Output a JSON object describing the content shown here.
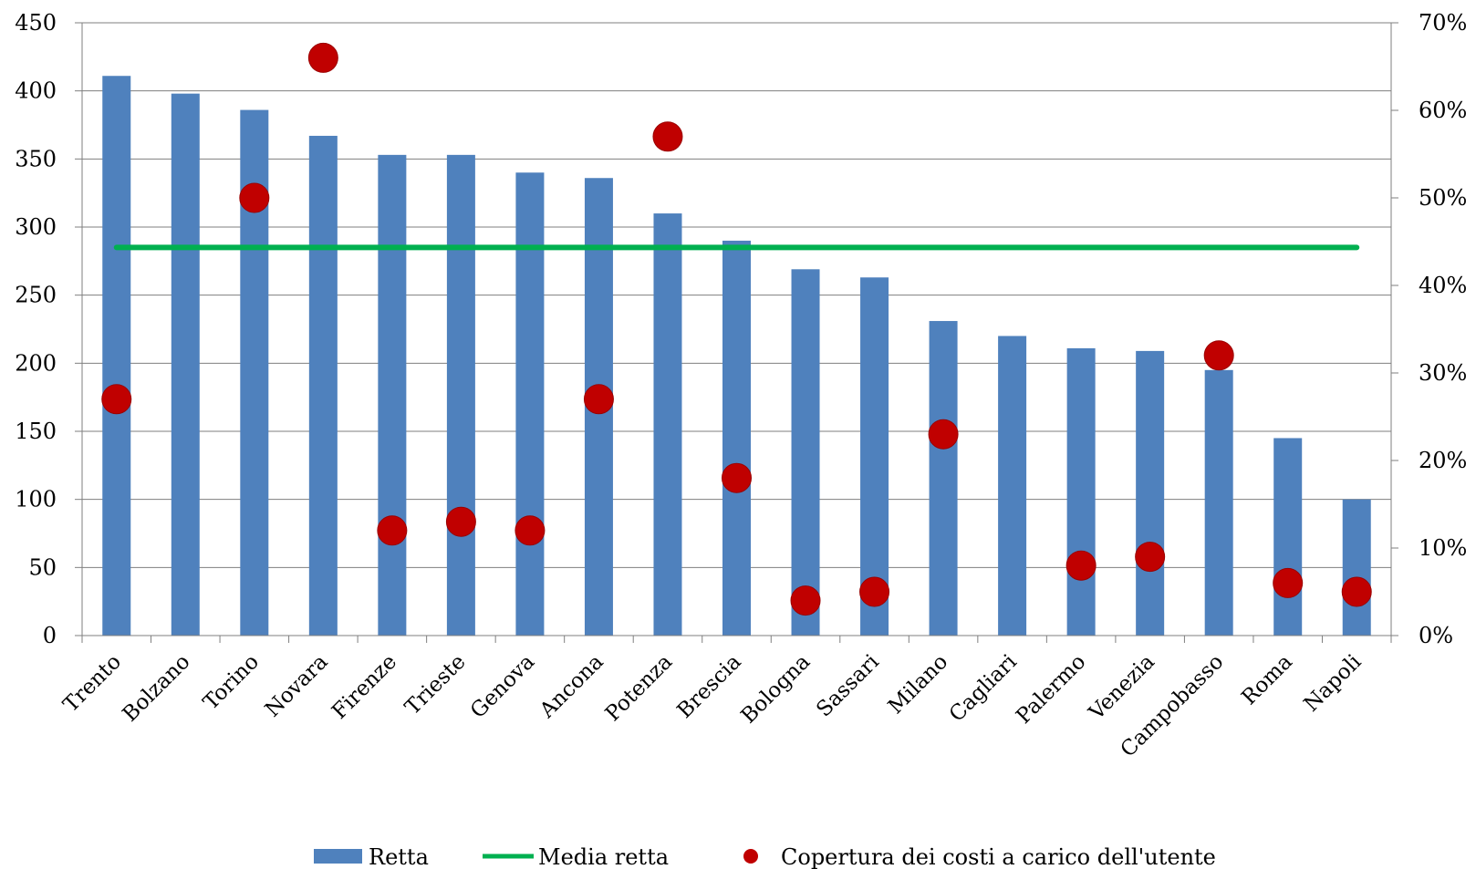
{
  "chart_data": {
    "type": "bar",
    "categories": [
      "Trento",
      "Bolzano",
      "Torino",
      "Novara",
      "Firenze",
      "Trieste",
      "Genova",
      "Ancona",
      "Potenza",
      "Brescia",
      "Bologna",
      "Sassari",
      "Milano",
      "Cagliari",
      "Palermo",
      "Venezia",
      "Campobasso",
      "Roma",
      "Napoli"
    ],
    "series": [
      {
        "name": "Retta",
        "type": "bar",
        "axis": "left",
        "values": [
          411,
          398,
          386,
          367,
          353,
          353,
          340,
          336,
          310,
          290,
          269,
          263,
          231,
          220,
          211,
          209,
          195,
          145,
          100
        ]
      },
      {
        "name": "Media retta",
        "type": "line",
        "axis": "left",
        "values": [
          285,
          285,
          285,
          285,
          285,
          285,
          285,
          285,
          285,
          285,
          285,
          285,
          285,
          285,
          285,
          285,
          285,
          285,
          285
        ]
      },
      {
        "name": "Copertura dei costi a carico dell'utente",
        "type": "scatter",
        "axis": "right",
        "values": [
          0.27,
          null,
          0.5,
          0.66,
          0.12,
          0.13,
          0.12,
          0.27,
          0.57,
          0.18,
          0.04,
          0.05,
          0.23,
          null,
          0.08,
          0.09,
          0.32,
          0.06,
          0.05
        ]
      }
    ],
    "left_axis": {
      "ylim": [
        0,
        450
      ],
      "ticks": [
        "0",
        "50",
        "100",
        "150",
        "200",
        "250",
        "300",
        "350",
        "400",
        "450"
      ]
    },
    "right_axis": {
      "ylim": [
        0,
        0.7
      ],
      "ticks": [
        "0%",
        "10%",
        "20%",
        "30%",
        "40%",
        "50%",
        "60%",
        "70%"
      ]
    },
    "grid": true,
    "legend_position": "bottom",
    "colors": {
      "bar": "#4f81bd",
      "line": "#00b050",
      "marker": "#c00000",
      "grid": "#7f7f7f"
    }
  }
}
